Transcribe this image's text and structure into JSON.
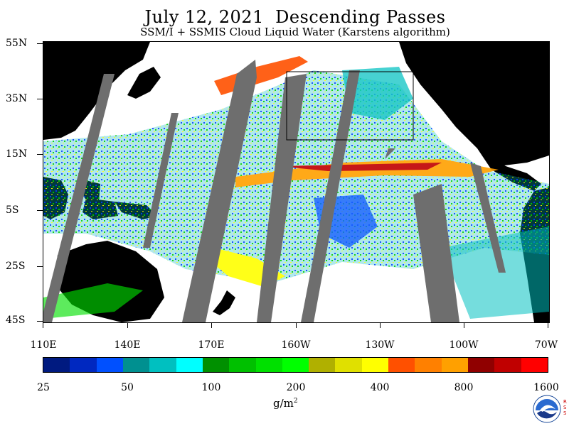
{
  "header": {
    "title": "July 12, 2021  Descending Passes",
    "subtitle": "SSM/I + SSMIS Cloud Liquid Water (Karstens algorithm)"
  },
  "map": {
    "lat_labels": [
      "55N",
      "35N",
      "15N",
      "5S",
      "25S",
      "45S"
    ],
    "lon_labels": [
      "110E",
      "140E",
      "170E",
      "160W",
      "130W",
      "100W",
      "70W"
    ]
  },
  "colorbar": {
    "labels": [
      "25",
      "50",
      "100",
      "200",
      "400",
      "800",
      "1600"
    ],
    "units_base": "g/m",
    "units_exp": "2",
    "colors": [
      "#001a80",
      "#0028c0",
      "#0050ff",
      "#009090",
      "#00c0c0",
      "#00ffff",
      "#009000",
      "#00c000",
      "#00e000",
      "#00ff00",
      "#b0b000",
      "#e0e000",
      "#ffff00",
      "#ff5000",
      "#ff8000",
      "#ffa000",
      "#900000",
      "#c00000",
      "#ff0000"
    ]
  },
  "logo": {
    "name": "NOAA",
    "side_text": "RSS"
  }
}
